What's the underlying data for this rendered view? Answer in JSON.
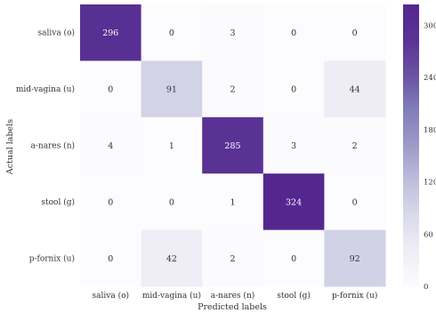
{
  "chart_data": {
    "type": "heatmap",
    "title": "",
    "xlabel": "Predicted labels",
    "ylabel": "Actual labels",
    "x_categories": [
      "saliva (o)",
      "mid-vagina (u)",
      "a-nares (n)",
      "stool (g)",
      "p-fornix (u)"
    ],
    "y_categories": [
      "saliva (o)",
      "mid-vagina (u)",
      "a-nares (n)",
      "stool (g)",
      "p-fornix (u)"
    ],
    "matrix": [
      [
        296,
        0,
        3,
        0,
        0
      ],
      [
        0,
        91,
        2,
        0,
        44
      ],
      [
        4,
        1,
        285,
        3,
        2
      ],
      [
        0,
        0,
        1,
        324,
        0
      ],
      [
        0,
        42,
        2,
        0,
        92
      ]
    ],
    "colorbar": {
      "range": [
        0,
        324
      ],
      "ticks": [
        0,
        60,
        120,
        180,
        240,
        300
      ],
      "colormap": "purples",
      "color_low": "#fcfbfd",
      "color_high": "#54278f"
    }
  }
}
